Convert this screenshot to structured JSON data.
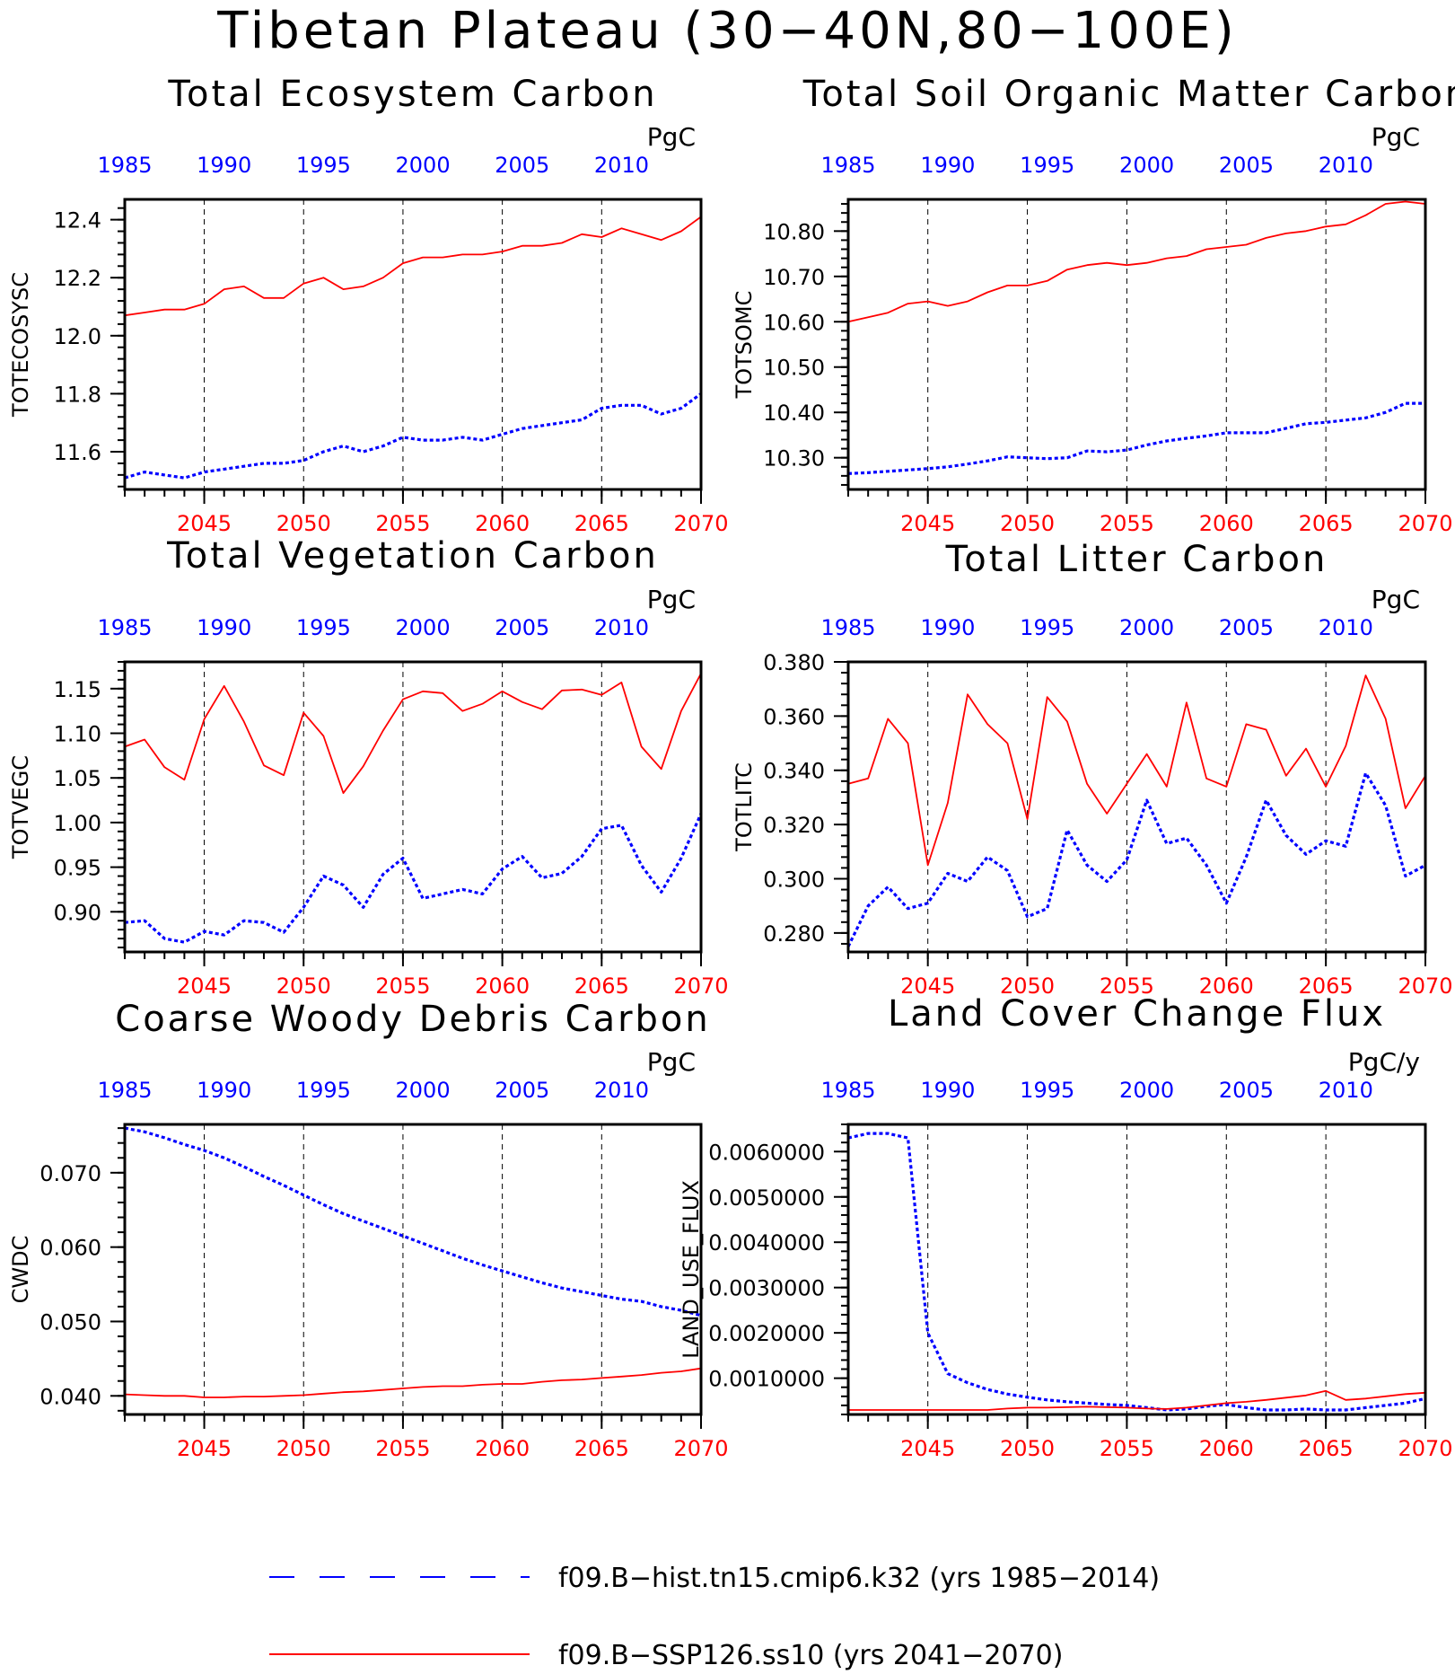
{
  "page": {
    "title": "Tibetan Plateau (30−40N,80−100E)"
  },
  "colors": {
    "hist": "#0000ff",
    "ssp": "#ff0000",
    "axis": "#000000"
  },
  "legend": {
    "entries": [
      {
        "label": "f09.B−hist.tn15.cmip6.k32 (yrs 1985−2014)",
        "color": "#0000ff",
        "style": "dashed"
      },
      {
        "label": "f09.B−SSP126.ss10 (yrs 2041−2070)",
        "color": "#ff0000",
        "style": "solid"
      }
    ]
  },
  "chart_data": [
    {
      "type": "line",
      "title": "Total Ecosystem Carbon",
      "ylabel": "TOTECOSYSC",
      "units": "PgC",
      "ylim": [
        11.47,
        12.47
      ],
      "yticks": [
        11.6,
        11.8,
        12.0,
        12.2,
        12.4
      ],
      "yticklabels": [
        "11.6",
        "11.8",
        "12.0",
        "12.2",
        "12.4"
      ],
      "x_top_ticks": [
        "1985",
        "1990",
        "1995",
        "2000",
        "2005",
        "2010"
      ],
      "x_bottom_ticks": [
        "2045",
        "2050",
        "2055",
        "2060",
        "2065",
        "2070"
      ],
      "series": [
        {
          "name": "f09.B−hist.tn15.cmip6.k32",
          "values": [
            11.51,
            11.53,
            11.52,
            11.51,
            11.53,
            11.54,
            11.55,
            11.56,
            11.56,
            11.57,
            11.6,
            11.62,
            11.6,
            11.62,
            11.65,
            11.64,
            11.64,
            11.65,
            11.64,
            11.66,
            11.68,
            11.69,
            11.7,
            11.71,
            11.75,
            11.76,
            11.76,
            11.73,
            11.75,
            11.8
          ]
        },
        {
          "name": "f09.B−SSP126.ss10",
          "values": [
            12.07,
            12.08,
            12.09,
            12.09,
            12.11,
            12.16,
            12.17,
            12.13,
            12.13,
            12.18,
            12.2,
            12.16,
            12.17,
            12.2,
            12.25,
            12.27,
            12.27,
            12.28,
            12.28,
            12.29,
            12.31,
            12.31,
            12.32,
            12.35,
            12.34,
            12.37,
            12.35,
            12.33,
            12.36,
            12.41
          ]
        }
      ]
    },
    {
      "type": "line",
      "title": "Total Soil Organic Matter Carbon",
      "ylabel": "TOTSOMC",
      "units": "PgC",
      "ylim": [
        10.23,
        10.87
      ],
      "yticks": [
        10.3,
        10.4,
        10.5,
        10.6,
        10.7,
        10.8
      ],
      "yticklabels": [
        "10.30",
        "10.40",
        "10.50",
        "10.60",
        "10.70",
        "10.80"
      ],
      "x_top_ticks": [
        "1985",
        "1990",
        "1995",
        "2000",
        "2005",
        "2010"
      ],
      "x_bottom_ticks": [
        "2045",
        "2050",
        "2055",
        "2060",
        "2065",
        "2070"
      ],
      "series": [
        {
          "name": "f09.B−hist.tn15.cmip6.k32",
          "values": [
            10.265,
            10.267,
            10.27,
            10.273,
            10.276,
            10.28,
            10.286,
            10.293,
            10.302,
            10.3,
            10.298,
            10.3,
            10.315,
            10.313,
            10.317,
            10.328,
            10.337,
            10.343,
            10.348,
            10.355,
            10.355,
            10.355,
            10.365,
            10.375,
            10.378,
            10.383,
            10.388,
            10.4,
            10.42,
            10.42
          ]
        },
        {
          "name": "f09.B−SSP126.ss10",
          "values": [
            10.6,
            10.61,
            10.62,
            10.64,
            10.645,
            10.635,
            10.645,
            10.665,
            10.68,
            10.68,
            10.69,
            10.715,
            10.725,
            10.73,
            10.725,
            10.73,
            10.74,
            10.745,
            10.76,
            10.765,
            10.77,
            10.785,
            10.795,
            10.8,
            10.81,
            10.815,
            10.835,
            10.86,
            10.865,
            10.86
          ]
        }
      ]
    },
    {
      "type": "line",
      "title": "Total Vegetation Carbon",
      "ylabel": "TOTVEGC",
      "units": "PgC",
      "ylim": [
        0.855,
        1.18
      ],
      "yticks": [
        0.9,
        0.95,
        1.0,
        1.05,
        1.1,
        1.15
      ],
      "yticklabels": [
        "0.90",
        "0.95",
        "1.00",
        "1.05",
        "1.10",
        "1.15"
      ],
      "x_top_ticks": [
        "1985",
        "1990",
        "1995",
        "2000",
        "2005",
        "2010"
      ],
      "x_bottom_ticks": [
        "2045",
        "2050",
        "2055",
        "2060",
        "2065",
        "2070"
      ],
      "series": [
        {
          "name": "f09.B−hist.tn15.cmip6.k32",
          "values": [
            0.888,
            0.89,
            0.87,
            0.866,
            0.878,
            0.874,
            0.89,
            0.888,
            0.877,
            0.905,
            0.94,
            0.93,
            0.905,
            0.942,
            0.96,
            0.915,
            0.92,
            0.925,
            0.92,
            0.948,
            0.962,
            0.938,
            0.943,
            0.962,
            0.993,
            0.997,
            0.952,
            0.922,
            0.96,
            1.01
          ]
        },
        {
          "name": "f09.B−SSP126.ss10",
          "values": [
            1.085,
            1.093,
            1.062,
            1.048,
            1.116,
            1.153,
            1.113,
            1.064,
            1.053,
            1.123,
            1.097,
            1.033,
            1.063,
            1.103,
            1.138,
            1.147,
            1.145,
            1.125,
            1.133,
            1.147,
            1.135,
            1.127,
            1.148,
            1.149,
            1.143,
            1.157,
            1.085,
            1.06,
            1.125,
            1.167
          ]
        }
      ]
    },
    {
      "type": "line",
      "title": "Total Litter Carbon",
      "ylabel": "TOTLITC",
      "units": "PgC",
      "ylim": [
        0.273,
        0.38
      ],
      "yticks": [
        0.28,
        0.3,
        0.32,
        0.34,
        0.36,
        0.38
      ],
      "yticklabels": [
        "0.280",
        "0.300",
        "0.320",
        "0.340",
        "0.360",
        "0.380"
      ],
      "x_top_ticks": [
        "1985",
        "1990",
        "1995",
        "2000",
        "2005",
        "2010"
      ],
      "x_bottom_ticks": [
        "2045",
        "2050",
        "2055",
        "2060",
        "2065",
        "2070"
      ],
      "series": [
        {
          "name": "f09.B−hist.tn15.cmip6.k32",
          "values": [
            0.275,
            0.29,
            0.297,
            0.289,
            0.291,
            0.302,
            0.299,
            0.308,
            0.303,
            0.286,
            0.289,
            0.318,
            0.305,
            0.299,
            0.307,
            0.329,
            0.313,
            0.315,
            0.305,
            0.291,
            0.308,
            0.329,
            0.316,
            0.309,
            0.314,
            0.312,
            0.339,
            0.327,
            0.301,
            0.305
          ]
        },
        {
          "name": "f09.B−SSP126.ss10",
          "values": [
            0.335,
            0.337,
            0.359,
            0.35,
            0.305,
            0.328,
            0.368,
            0.357,
            0.35,
            0.322,
            0.367,
            0.358,
            0.335,
            0.324,
            0.335,
            0.346,
            0.334,
            0.365,
            0.337,
            0.334,
            0.357,
            0.355,
            0.338,
            0.348,
            0.334,
            0.349,
            0.375,
            0.359,
            0.326,
            0.338
          ]
        }
      ]
    },
    {
      "type": "line",
      "title": "Coarse Woody Debris Carbon",
      "ylabel": "CWDC",
      "units": "PgC",
      "ylim": [
        0.0375,
        0.0765
      ],
      "yticks": [
        0.04,
        0.05,
        0.06,
        0.07
      ],
      "yticklabels": [
        "0.040",
        "0.050",
        "0.060",
        "0.070"
      ],
      "x_top_ticks": [
        "1985",
        "1990",
        "1995",
        "2000",
        "2005",
        "2010"
      ],
      "x_bottom_ticks": [
        "2045",
        "2050",
        "2055",
        "2060",
        "2065",
        "2070"
      ],
      "series": [
        {
          "name": "f09.B−hist.tn15.cmip6.k32",
          "values": [
            0.076,
            0.0755,
            0.0747,
            0.0738,
            0.073,
            0.072,
            0.0708,
            0.0695,
            0.0683,
            0.067,
            0.0657,
            0.0645,
            0.0635,
            0.0625,
            0.0615,
            0.0605,
            0.0595,
            0.0585,
            0.0576,
            0.0568,
            0.056,
            0.0552,
            0.0545,
            0.054,
            0.0535,
            0.053,
            0.0527,
            0.052,
            0.0515,
            0.0508
          ]
        },
        {
          "name": "f09.B−SSP126.ss10",
          "values": [
            0.0402,
            0.0401,
            0.04,
            0.04,
            0.0398,
            0.0398,
            0.0399,
            0.0399,
            0.04,
            0.0401,
            0.0403,
            0.0405,
            0.0406,
            0.0408,
            0.041,
            0.0412,
            0.0413,
            0.0413,
            0.0415,
            0.0416,
            0.0416,
            0.0419,
            0.0421,
            0.0422,
            0.0424,
            0.0426,
            0.0428,
            0.0431,
            0.0433,
            0.0437
          ]
        }
      ]
    },
    {
      "type": "line",
      "title": "Land Cover Change Flux",
      "ylabel": "LAND_USE_FLUX",
      "units": "PgC/y",
      "ylim": [
        0.0002,
        0.0066
      ],
      "yticks": [
        0.001,
        0.002,
        0.003,
        0.004,
        0.005,
        0.006
      ],
      "yticklabels": [
        "0.0010000",
        "0.0020000",
        "0.0030000",
        "0.0040000",
        "0.0050000",
        "0.0060000"
      ],
      "x_top_ticks": [
        "1985",
        "1990",
        "1995",
        "2000",
        "2005",
        "2010"
      ],
      "x_bottom_ticks": [
        "2045",
        "2050",
        "2055",
        "2060",
        "2065",
        "2070"
      ],
      "series": [
        {
          "name": "f09.B−hist.tn15.cmip6.k32",
          "values": [
            0.0063,
            0.0064,
            0.0064,
            0.0063,
            0.002,
            0.0011,
            0.0009,
            0.00075,
            0.00065,
            0.00058,
            0.00052,
            0.00048,
            0.00045,
            0.00042,
            0.0004,
            0.00035,
            0.0003,
            0.00032,
            0.00038,
            0.00042,
            0.00035,
            0.0003,
            0.0003,
            0.00032,
            0.0003,
            0.0003,
            0.00035,
            0.0004,
            0.00045,
            0.00055
          ]
        },
        {
          "name": "f09.B−SSP126.ss10",
          "values": [
            0.0003,
            0.0003,
            0.0003,
            0.0003,
            0.0003,
            0.0003,
            0.0003,
            0.0003,
            0.00033,
            0.00035,
            0.00035,
            0.00036,
            0.00037,
            0.00036,
            0.00035,
            0.00033,
            0.00032,
            0.00035,
            0.0004,
            0.00045,
            0.00048,
            0.00052,
            0.00057,
            0.00062,
            0.00072,
            0.00052,
            0.00055,
            0.0006,
            0.00065,
            0.00068
          ]
        }
      ]
    }
  ]
}
